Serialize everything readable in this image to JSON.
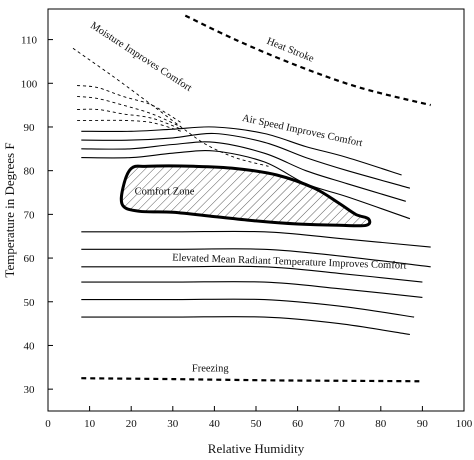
{
  "chart_data": {
    "type": "line",
    "title": "",
    "xlabel": "Relative Humidity",
    "ylabel": "Temperature in Degrees F",
    "xlim": [
      0,
      100
    ],
    "ylim": [
      25,
      117
    ],
    "x_ticks": [
      0,
      10,
      20,
      30,
      40,
      50,
      60,
      70,
      80,
      90,
      100
    ],
    "y_ticks": [
      30,
      40,
      50,
      60,
      70,
      80,
      90,
      100,
      110
    ],
    "grid": false,
    "annotations": [
      {
        "key": "heat_stroke",
        "text": "Heat Stroke",
        "x": 58,
        "y": 107,
        "rotate": 22
      },
      {
        "key": "moisture",
        "text": "Moisture Improves Comfort",
        "x": 22,
        "y": 105.5,
        "rotate": 33
      },
      {
        "key": "air_speed",
        "text": "Air Speed Improves Comfort",
        "x": 61,
        "y": 88.5,
        "rotate": 12
      },
      {
        "key": "comfort_zone",
        "text": "Comfort Zone",
        "x": 28,
        "y": 74.5,
        "rotate": 0
      },
      {
        "key": "mrt",
        "text": "Elevated Mean Radiant Temperature Improves Comfort",
        "x": 58,
        "y": 58.5,
        "rotate": 2
      },
      {
        "key": "freezing",
        "text": "Freezing",
        "x": 39,
        "y": 34,
        "rotate": 0
      }
    ],
    "curves": [
      {
        "name": "heat_stroke",
        "style": "dashed-bold",
        "x": [
          33,
          45,
          60,
          75,
          92
        ],
        "y": [
          115.5,
          110,
          104,
          99,
          95
        ]
      },
      {
        "name": "freezing",
        "style": "dashed-bold",
        "x": [
          8,
          30,
          55,
          75,
          90
        ],
        "y": [
          32.5,
          32.3,
          32,
          31.9,
          31.8
        ]
      },
      {
        "name": "moisture_1",
        "style": "dashed",
        "x": [
          7,
          12,
          18,
          25,
          32
        ],
        "y": [
          99.5,
          99,
          97,
          95,
          91
        ]
      },
      {
        "name": "moisture_2",
        "style": "dashed",
        "x": [
          7,
          12,
          18,
          25,
          32
        ],
        "y": [
          97,
          96.5,
          95,
          93,
          90
        ]
      },
      {
        "name": "moisture_3",
        "style": "dashed",
        "x": [
          7,
          12,
          18,
          25,
          32
        ],
        "y": [
          94,
          94,
          93,
          92,
          89.5
        ]
      },
      {
        "name": "moisture_4",
        "style": "dashed",
        "x": [
          7,
          12,
          18,
          25,
          32
        ],
        "y": [
          91.5,
          91.5,
          91.5,
          91,
          89
        ]
      },
      {
        "name": "moisture_descent",
        "style": "dashed",
        "x": [
          6,
          15,
          25,
          32,
          38,
          45,
          53
        ],
        "y": [
          108,
          102,
          95,
          90,
          86,
          83,
          81
        ]
      },
      {
        "name": "air_1",
        "style": "solid",
        "x": [
          8,
          20,
          30,
          40,
          52,
          62,
          72,
          85
        ],
        "y": [
          89,
          89,
          89.5,
          90,
          88.5,
          85.5,
          83,
          79
        ]
      },
      {
        "name": "air_2",
        "style": "solid",
        "x": [
          8,
          20,
          30,
          40,
          52,
          62,
          72,
          87
        ],
        "y": [
          87,
          87,
          87.5,
          88.5,
          86.5,
          83,
          80,
          76
        ]
      },
      {
        "name": "air_3",
        "style": "solid",
        "x": [
          8,
          20,
          30,
          40,
          52,
          62,
          72,
          86
        ],
        "y": [
          85,
          85,
          86,
          86.5,
          84,
          80,
          77,
          73
        ]
      },
      {
        "name": "air_4",
        "style": "solid",
        "x": [
          8,
          20,
          30,
          40,
          52,
          62,
          72,
          87
        ],
        "y": [
          83,
          83,
          84,
          84.5,
          82,
          77,
          74,
          69
        ]
      },
      {
        "name": "mrt_1",
        "style": "solid",
        "x": [
          8,
          30,
          52,
          70,
          92
        ],
        "y": [
          66,
          66,
          66,
          64.5,
          62.5
        ]
      },
      {
        "name": "mrt_2",
        "style": "solid",
        "x": [
          8,
          30,
          52,
          70,
          92
        ],
        "y": [
          62,
          62,
          62,
          60.5,
          58
        ]
      },
      {
        "name": "mrt_3",
        "style": "solid",
        "x": [
          8,
          30,
          52,
          70,
          90
        ],
        "y": [
          58,
          58,
          58,
          56.5,
          54.5
        ]
      },
      {
        "name": "mrt_4",
        "style": "solid",
        "x": [
          8,
          30,
          52,
          70,
          90
        ],
        "y": [
          54.5,
          54.5,
          54.5,
          53,
          51
        ]
      },
      {
        "name": "mrt_5",
        "style": "solid",
        "x": [
          8,
          30,
          52,
          70,
          88
        ],
        "y": [
          50.5,
          50.5,
          50.5,
          49,
          46.5
        ]
      },
      {
        "name": "mrt_6",
        "style": "solid",
        "x": [
          8,
          30,
          52,
          70,
          87
        ],
        "y": [
          46.5,
          46.5,
          46.5,
          45,
          42.5
        ]
      }
    ],
    "comfort_zone": {
      "x": [
        20,
        24,
        35,
        45,
        55,
        64,
        70,
        74,
        77,
        76.5,
        70,
        60,
        50,
        40,
        30,
        22,
        18,
        18,
        20
      ],
      "y": [
        80.5,
        81,
        81,
        80.5,
        79,
        76,
        72.5,
        70,
        69,
        67.5,
        67.5,
        67.8,
        68.5,
        69.5,
        70.5,
        70.7,
        72,
        76,
        80.5
      ]
    }
  }
}
